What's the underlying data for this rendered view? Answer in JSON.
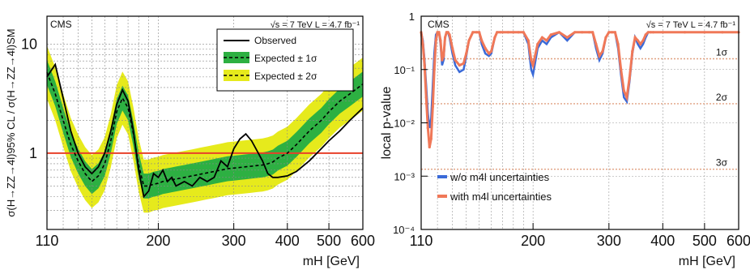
{
  "chart_data": [
    {
      "type": "line",
      "header_left": "CMS",
      "header_right": "√s = 7 TeV  L = 4.7 fb⁻¹",
      "xlabel": "mH [GeV]",
      "ylabel": "σ(H→ZZ→4l)95% CL / σ(H→ZZ→4l)SM",
      "x_scale": "log",
      "y_scale": "log",
      "xlim": [
        110,
        600
      ],
      "ylim": [
        0.2,
        18
      ],
      "x_ticks": [
        110,
        200,
        300,
        400,
        500,
        600
      ],
      "y_ticks": [
        1,
        10
      ],
      "grid": true,
      "legend_position": "top-right",
      "legend": [
        "Observed",
        "Expected ± 1σ",
        "Expected ± 2σ"
      ],
      "reference_line": {
        "y": 1,
        "color": "#e8402a"
      },
      "colors": {
        "observed": "#000000",
        "band_1sigma": "#2db042",
        "band_2sigma": "#e6ea1c",
        "expected": "#000000"
      },
      "x": [
        110,
        115,
        120,
        125,
        130,
        135,
        140,
        145,
        150,
        155,
        160,
        165,
        170,
        175,
        180,
        185,
        190,
        195,
        200,
        205,
        210,
        215,
        220,
        230,
        240,
        250,
        260,
        270,
        280,
        290,
        300,
        310,
        320,
        330,
        340,
        350,
        360,
        370,
        380,
        400,
        420,
        450,
        480,
        500,
        530,
        560,
        600
      ],
      "series": [
        {
          "name": "Observed",
          "values": [
            5.0,
            6.5,
            3.2,
            1.6,
            1.0,
            0.75,
            0.65,
            0.75,
            1.0,
            1.6,
            2.8,
            3.8,
            3.0,
            1.6,
            0.7,
            0.4,
            0.45,
            0.65,
            0.6,
            0.7,
            0.55,
            0.6,
            0.5,
            0.55,
            0.5,
            0.6,
            0.55,
            0.6,
            0.85,
            0.75,
            1.1,
            1.35,
            1.5,
            1.3,
            1.05,
            0.85,
            0.65,
            0.6,
            0.6,
            0.62,
            0.68,
            0.85,
            1.1,
            1.3,
            1.6,
            2.0,
            2.6
          ]
        },
        {
          "name": "Expected",
          "values": [
            5.5,
            3.5,
            2.0,
            1.2,
            0.85,
            0.65,
            0.55,
            0.62,
            0.8,
            1.3,
            2.4,
            3.2,
            2.6,
            1.5,
            0.78,
            0.5,
            0.5,
            0.52,
            0.53,
            0.55,
            0.56,
            0.57,
            0.58,
            0.6,
            0.62,
            0.64,
            0.66,
            0.68,
            0.7,
            0.72,
            0.73,
            0.74,
            0.75,
            0.76,
            0.77,
            0.78,
            0.8,
            0.83,
            0.9,
            1.0,
            1.2,
            1.6,
            2.0,
            2.4,
            3.0,
            3.5,
            4.3
          ]
        }
      ],
      "band_1sigma_factor": 1.3,
      "band_2sigma_factor": 1.75
    },
    {
      "type": "line",
      "header_left": "CMS",
      "header_right": "√s = 7 TeV  L = 4.7 fb⁻¹",
      "xlabel": "mH [GeV]",
      "ylabel": "local p-value",
      "x_scale": "log",
      "y_scale": "log",
      "xlim": [
        110,
        600
      ],
      "ylim": [
        0.0001,
        1
      ],
      "x_ticks": [
        110,
        200,
        300,
        400,
        500,
        600
      ],
      "y_ticks": [
        "1",
        "10⁻¹",
        "10⁻²",
        "10⁻³",
        "10⁻⁴"
      ],
      "grid": true,
      "legend_position": "bottom-left",
      "sigma_lines": [
        {
          "label": "1σ",
          "p": 0.159
        },
        {
          "label": "2σ",
          "p": 0.0228
        },
        {
          "label": "3σ",
          "p": 0.00135
        }
      ],
      "colors": {
        "without_unc": "#3a6ad8",
        "with_unc": "#f07858",
        "sigma_line": "#e0a080"
      },
      "x": [
        110,
        111,
        112,
        113,
        114,
        115,
        116,
        117,
        118,
        119,
        120,
        121,
        122,
        123,
        124,
        125,
        126,
        127,
        128,
        130,
        132,
        135,
        138,
        140,
        142,
        145,
        148,
        150,
        152,
        155,
        158,
        160,
        163,
        165,
        168,
        170,
        175,
        180,
        185,
        190,
        195,
        198,
        200,
        205,
        210,
        215,
        220,
        230,
        240,
        250,
        260,
        270,
        275,
        280,
        285,
        290,
        295,
        300,
        305,
        310,
        315,
        320,
        325,
        330,
        335,
        340,
        345,
        350,
        355,
        360,
        365,
        370,
        375,
        380,
        400,
        450,
        500,
        550,
        600
      ],
      "series": [
        {
          "name": "w/o m4l uncertainties",
          "values": [
            0.5,
            0.35,
            0.15,
            0.05,
            0.015,
            0.008,
            0.012,
            0.05,
            0.2,
            0.45,
            0.5,
            0.5,
            0.3,
            0.12,
            0.15,
            0.4,
            0.5,
            0.5,
            0.4,
            0.2,
            0.12,
            0.09,
            0.1,
            0.18,
            0.35,
            0.5,
            0.5,
            0.5,
            0.3,
            0.2,
            0.18,
            0.2,
            0.4,
            0.5,
            0.5,
            0.5,
            0.5,
            0.5,
            0.5,
            0.5,
            0.3,
            0.1,
            0.08,
            0.25,
            0.35,
            0.3,
            0.4,
            0.5,
            0.35,
            0.5,
            0.5,
            0.5,
            0.5,
            0.25,
            0.15,
            0.2,
            0.4,
            0.5,
            0.5,
            0.5,
            0.25,
            0.08,
            0.03,
            0.025,
            0.06,
            0.2,
            0.4,
            0.3,
            0.25,
            0.3,
            0.4,
            0.5,
            0.5,
            0.5,
            0.5,
            0.5,
            0.5,
            0.5,
            0.5
          ]
        },
        {
          "name": "with m4l uncertainties",
          "values": [
            0.5,
            0.3,
            0.12,
            0.03,
            0.008,
            0.0035,
            0.005,
            0.02,
            0.1,
            0.35,
            0.5,
            0.5,
            0.35,
            0.15,
            0.18,
            0.4,
            0.5,
            0.5,
            0.45,
            0.25,
            0.15,
            0.12,
            0.13,
            0.2,
            0.35,
            0.5,
            0.5,
            0.5,
            0.35,
            0.25,
            0.2,
            0.22,
            0.4,
            0.5,
            0.5,
            0.5,
            0.5,
            0.5,
            0.5,
            0.5,
            0.35,
            0.15,
            0.12,
            0.3,
            0.4,
            0.35,
            0.45,
            0.5,
            0.4,
            0.5,
            0.5,
            0.5,
            0.5,
            0.3,
            0.18,
            0.22,
            0.4,
            0.5,
            0.5,
            0.5,
            0.3,
            0.1,
            0.04,
            0.03,
            0.07,
            0.22,
            0.4,
            0.35,
            0.3,
            0.35,
            0.45,
            0.5,
            0.5,
            0.5,
            0.5,
            0.5,
            0.5,
            0.5,
            0.5
          ]
        }
      ]
    }
  ]
}
